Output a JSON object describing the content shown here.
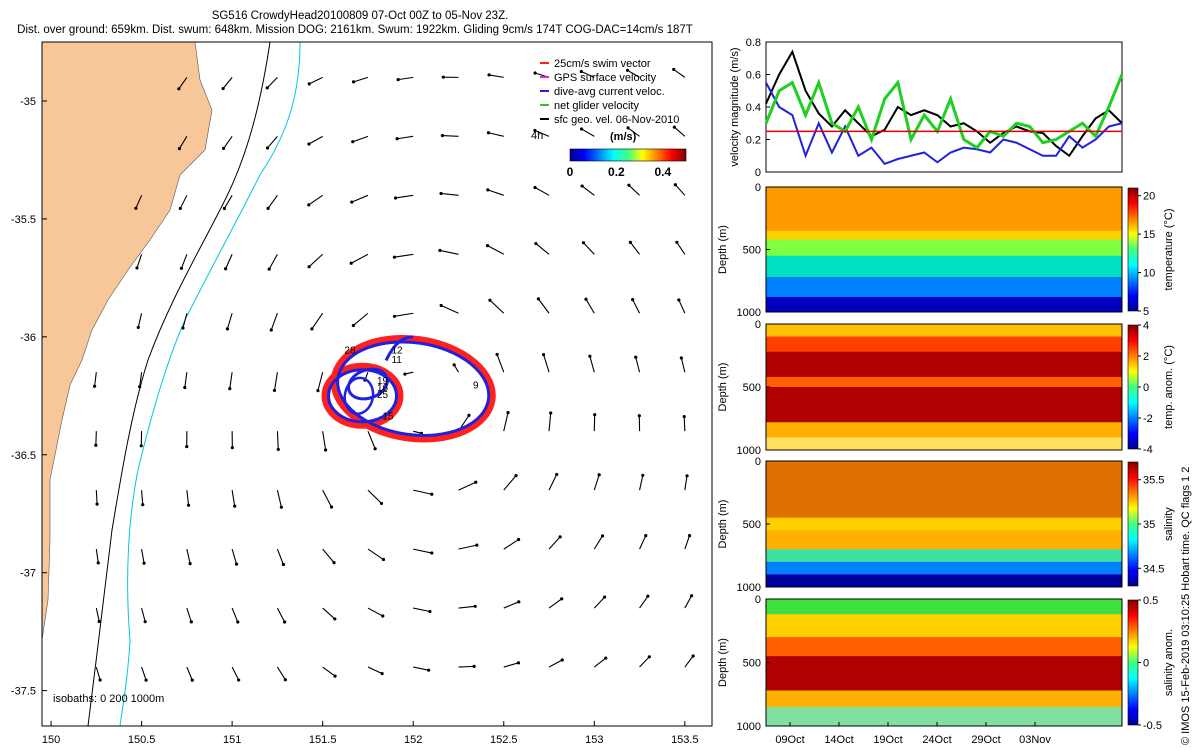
{
  "title_line1": "SG516 CrowdyHead20100809 07-Oct 00Z to 05-Nov 23Z.",
  "title_line2": "Dist. over ground: 659km. Dist. swum: 648km. Mission DOG: 2161km. Swum: 1922km. Gliding 9cm/s 174T COG-DAC=14cm/s 187T",
  "side_note": "© IMOS 15-Feb-2019 03:10:25 Hobart time. QC flags 1 2",
  "colors": {
    "land": "#f7c79a",
    "coast": "#1a1a1a",
    "iso200": "#00c8e0",
    "iso1000": "#000000",
    "swim": "#ff2020",
    "gps": "#e020e0",
    "dac": "#2020e0",
    "net": "#20d020",
    "sfc": "#000000",
    "ref_line": "#e00000"
  },
  "chart_data": [
    {
      "type": "scatter",
      "title": "",
      "xlim": [
        149.95,
        153.65
      ],
      "ylim": [
        -37.65,
        -34.75
      ],
      "x_ticks": [
        "150",
        "150.5",
        "151",
        "151.5",
        "152",
        "152.5",
        "153",
        "153.5"
      ],
      "y_ticks": [
        "-35",
        "-35.5",
        "-36",
        "-36.5",
        "-37",
        "-37.5"
      ],
      "legend": [
        "25cm/s swim vector",
        "GPS surface velocity",
        "dive-avg current veloc.",
        "net glider velocity",
        "sfc geo. vel. 06-Nov-2010"
      ],
      "legend_note": "4h",
      "colorbar": {
        "label": "(m/s)",
        "ticks": [
          "0",
          "0.2",
          "0.4"
        ],
        "range": [
          0,
          0.5
        ]
      },
      "isobath_note": "isobaths: 0   200   1000m",
      "eddy_center": [
        152.0,
        -36.22
      ],
      "track_day_labels": [
        {
          "label": "28",
          "x": 151.62,
          "y": -36.07
        },
        {
          "label": "12",
          "x": 151.88,
          "y": -36.07
        },
        {
          "label": "11",
          "x": 151.88,
          "y": -36.11
        },
        {
          "label": "19",
          "x": 151.8,
          "y": -36.2
        },
        {
          "label": "16",
          "x": 151.8,
          "y": -36.23
        },
        {
          "label": "25",
          "x": 151.8,
          "y": -36.26
        },
        {
          "label": "15",
          "x": 151.83,
          "y": -36.35
        },
        {
          "label": "9",
          "x": 152.33,
          "y": -36.22
        }
      ]
    },
    {
      "type": "line",
      "ylabel": "velocity magnitude (m/s)",
      "ylim": [
        0,
        0.8
      ],
      "y_ticks": [
        "0",
        "0.2",
        "0.4",
        "0.6",
        "0.8"
      ],
      "reference_value": 0.25,
      "series": [
        {
          "color": "black",
          "values": [
            0.42,
            0.6,
            0.74,
            0.5,
            0.36,
            0.28,
            0.38,
            0.3,
            0.22,
            0.26,
            0.4,
            0.35,
            0.38,
            0.35,
            0.28,
            0.3,
            0.25,
            0.18,
            0.24,
            0.28,
            0.25,
            0.24,
            0.16,
            0.1,
            0.22,
            0.33,
            0.38,
            0.3
          ]
        },
        {
          "color": "blue",
          "values": [
            0.55,
            0.4,
            0.35,
            0.1,
            0.3,
            0.12,
            0.28,
            0.1,
            0.15,
            0.05,
            0.08,
            0.1,
            0.12,
            0.06,
            0.12,
            0.15,
            0.14,
            0.12,
            0.2,
            0.18,
            0.14,
            0.1,
            0.1,
            0.22,
            0.15,
            0.2,
            0.28,
            0.3
          ]
        },
        {
          "color": "green",
          "values": [
            0.3,
            0.5,
            0.55,
            0.35,
            0.55,
            0.3,
            0.25,
            0.4,
            0.2,
            0.45,
            0.55,
            0.2,
            0.35,
            0.25,
            0.45,
            0.2,
            0.15,
            0.25,
            0.22,
            0.3,
            0.28,
            0.18,
            0.2,
            0.25,
            0.3,
            0.22,
            0.4,
            0.6
          ]
        }
      ]
    },
    {
      "type": "heatmap",
      "ylabel": "Depth (m)",
      "colorbar_label": "temperature (°C)",
      "y_ticks": [
        "0",
        "500",
        "1000"
      ],
      "cbar_ticks": [
        "20",
        "15",
        "10",
        "5"
      ],
      "crange": [
        5,
        21
      ]
    },
    {
      "type": "heatmap",
      "ylabel": "Depth (m)",
      "colorbar_label": "temp. anom. (°C)",
      "y_ticks": [
        "0",
        "500",
        "1000"
      ],
      "cbar_ticks": [
        "4",
        "2",
        "0",
        "-2",
        "-4"
      ],
      "crange": [
        -4,
        4
      ]
    },
    {
      "type": "heatmap",
      "ylabel": "Depth (m)",
      "colorbar_label": "salinity",
      "y_ticks": [
        "0",
        "500",
        "1000"
      ],
      "cbar_ticks": [
        "35.5",
        "35",
        "34.5"
      ],
      "crange": [
        34.3,
        35.7
      ]
    },
    {
      "type": "heatmap",
      "ylabel": "Depth (m)",
      "colorbar_label": "salinity anom.",
      "y_ticks": [
        "0",
        "500",
        "1000"
      ],
      "cbar_ticks": [
        "0.5",
        "0",
        "-0.5"
      ],
      "crange": [
        -0.5,
        0.5
      ],
      "x_ticks": [
        "09Oct",
        "14Oct",
        "19Oct",
        "24Oct",
        "29Oct",
        "03Nov"
      ]
    }
  ]
}
